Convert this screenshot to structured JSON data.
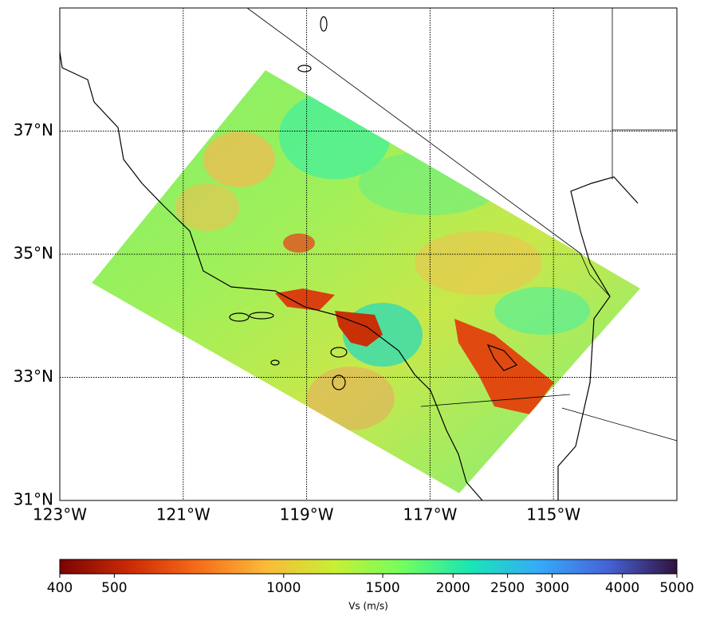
{
  "map": {
    "xlim": [
      -123,
      -113
    ],
    "ylim": [
      31,
      39
    ],
    "xticks": [
      {
        "value": -123,
        "label": "123°W"
      },
      {
        "value": -121,
        "label": "121°W"
      },
      {
        "value": -119,
        "label": "119°W"
      },
      {
        "value": -117,
        "label": "117°W"
      },
      {
        "value": -115,
        "label": "115°W"
      }
    ],
    "yticks": [
      {
        "value": 31,
        "label": "31°N"
      },
      {
        "value": 33,
        "label": "33°N"
      },
      {
        "value": 35,
        "label": "35°N"
      },
      {
        "value": 37,
        "label": "37°N"
      }
    ],
    "grid": true
  },
  "colorbar": {
    "label": "Vs (m/s)",
    "scale": "log",
    "lim": [
      400,
      5000
    ],
    "ticks": [
      400,
      500,
      1000,
      1500,
      2000,
      2500,
      3000,
      4000,
      5000
    ],
    "colormap": "turbo_r"
  }
}
